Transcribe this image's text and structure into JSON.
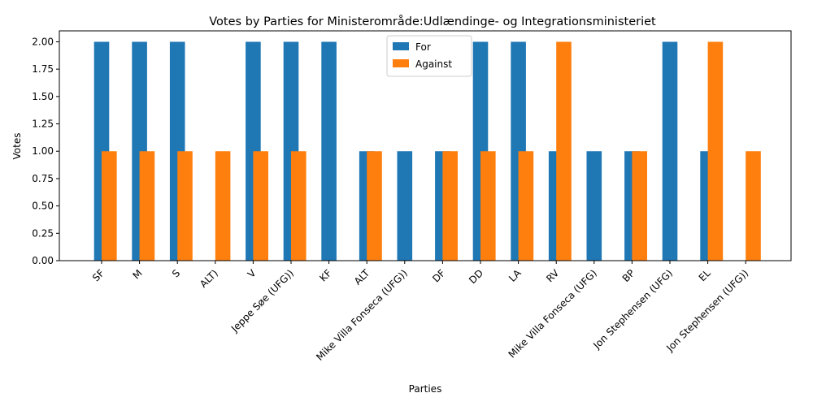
{
  "chart_data": {
    "type": "bar",
    "title": "Votes by Parties for Ministerområde:Udlændinge- og Integrationsministeriet",
    "xlabel": "Parties",
    "ylabel": "Votes",
    "ylim": [
      0,
      2.1
    ],
    "yticks": [
      0.0,
      0.25,
      0.5,
      0.75,
      1.0,
      1.25,
      1.5,
      1.75,
      2.0
    ],
    "ytick_labels": [
      "0.00",
      "0.25",
      "0.50",
      "0.75",
      "1.00",
      "1.25",
      "1.50",
      "1.75",
      "2.00"
    ],
    "categories": [
      "SF",
      "M",
      "S",
      "ALT)",
      "V",
      "Jeppe Søe (UFG))",
      "KF",
      "ALT",
      "Mike Villa Fonseca (UFG))",
      "DF",
      "DD",
      "LA",
      "RV",
      "Mike Villa Fonseca (UFG)",
      "BP",
      "Jon Stephensen (UFG)",
      "EL",
      "Jon Stephensen (UFG))"
    ],
    "series": [
      {
        "name": "For",
        "color": "#1f77b4",
        "values": [
          2,
          2,
          2,
          0,
          2,
          2,
          2,
          1,
          1,
          1,
          2,
          2,
          1,
          1,
          1,
          2,
          1,
          0
        ]
      },
      {
        "name": "Against",
        "color": "#ff7f0e",
        "values": [
          1,
          1,
          1,
          1,
          1,
          1,
          0,
          1,
          0,
          1,
          1,
          1,
          2,
          0,
          1,
          0,
          2,
          1
        ]
      }
    ],
    "grid": false,
    "legend_position": "top-center"
  }
}
